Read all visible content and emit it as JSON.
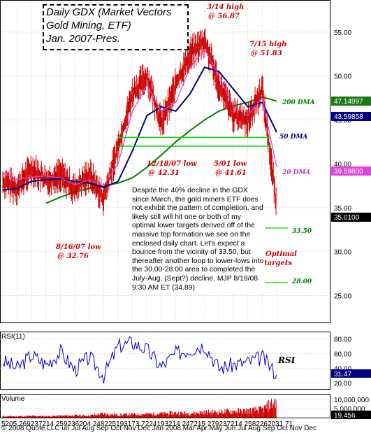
{
  "title_lines": [
    "Daily GDX (Market Vectors",
    "Gold Mining, ETF)",
    "Jan. 2007-Pres."
  ],
  "commentary": "Despite the 40% decline in the GDX since March, the gold miners ETF does not exhibit the pattern of completion, and likely still will hit one or both of my optimal lower targets derived off of the massive top formation we see on the enclosed daily chart. Let's expect a bounce from the vicinity of 33.50, but thereafter another loop to lower-lows into the 30.00-28.00 area to completed the July-Aug. (Sept?) decline. MJP 8/19/08 9:30 AM ET (34.89)",
  "annotations": {
    "high_0314": "3/14 high",
    "high_0314_val": "@ 56.87",
    "high_0715": "7/15 high",
    "high_0715_val": "@ 51.83",
    "low_1218": "12/18/07 low",
    "low_1218_val": "@ 42.31",
    "low_0501": "5/01 low",
    "low_0501_val": "@ 41.61",
    "low_0816": "8/16/07 low",
    "low_0816_val": "@ 32.76",
    "dma200": "200 DMA",
    "dma50": "50 DMA",
    "dma20": "20 DMA",
    "target1": "33.50",
    "target2": "28.00",
    "optimal_targets_1": "Optimal",
    "optimal_targets_2": "targets",
    "rsi_label": "RSI"
  },
  "price_tags": {
    "dma200_value": "47.14997",
    "dma50_value": "43.59858",
    "dma20_value": "39.59800",
    "last_price": "35.0100",
    "rsi_value": "31.47",
    "volume_value": "19,456"
  },
  "panel_labels": {
    "rsi": "RSI(11)",
    "volume": "Volume"
  },
  "x_axis": {
    "day_ticks": "5205  269237214   259236204  248225193173 7224193214  247215   279237214  2582262031 71",
    "month_ticks": "© 2008 Quote LLC un Jul   Aug Sep Oct  Nov Dec Jan 2008 Mar  Apr  May Jun  Jul    Aug Sep Oct  Nov Dec"
  },
  "colors": {
    "candle": "#cc0000",
    "dma20": "#dd44dd",
    "dma50": "#000080",
    "dma200": "#008000",
    "support": "#00dd00",
    "rsi": "#0000cc"
  },
  "chart_data": [
    {
      "type": "line",
      "title": "Daily GDX (Market Vectors Gold Mining, ETF) Jan. 2007-Pres.",
      "y_ticks": [
        25,
        30,
        35,
        40,
        45,
        50,
        55
      ],
      "ylim": [
        22,
        58.5
      ],
      "x_dates": [
        "2007-01",
        "2007-02",
        "2007-03",
        "2007-04",
        "2007-05",
        "2007-06",
        "2007-07",
        "2007-08",
        "2007-09",
        "2007-10",
        "2007-11",
        "2007-12",
        "2008-01",
        "2008-02",
        "2008-03",
        "2008-04",
        "2008-05",
        "2008-06",
        "2008-07",
        "2008-08"
      ],
      "series": [
        {
          "name": "GDX",
          "values": [
            38.0,
            37.2,
            39.5,
            38.0,
            38.8,
            37.0,
            38.8,
            36.0,
            42.0,
            48.0,
            50.0,
            44.5,
            49.0,
            52.5,
            54.0,
            49.0,
            45.5,
            45.0,
            48.5,
            35.0
          ]
        },
        {
          "name": "20 DMA",
          "values": [
            39.0,
            38.2,
            38.5,
            38.6,
            38.4,
            37.6,
            38.2,
            37.5,
            40.0,
            46.0,
            49.0,
            46.0,
            47.0,
            51.0,
            53.0,
            50.0,
            46.5,
            45.5,
            47.5,
            39.6
          ]
        },
        {
          "name": "50 DMA",
          "values": [
            37.0,
            37.2,
            38.0,
            38.2,
            38.3,
            38.0,
            37.8,
            37.3,
            38.0,
            41.5,
            45.5,
            46.5,
            46.0,
            48.0,
            51.0,
            50.5,
            48.5,
            46.5,
            47.0,
            43.6
          ]
        },
        {
          "name": "200 DMA",
          "values": [
            null,
            null,
            null,
            35.5,
            36.2,
            36.8,
            37.2,
            37.5,
            37.8,
            38.4,
            39.6,
            41.0,
            42.5,
            43.8,
            45.0,
            46.0,
            46.6,
            47.0,
            47.6,
            47.15
          ]
        }
      ],
      "annotations": [
        {
          "label": "3/14 high @ 56.87",
          "date": "2008-03-14",
          "value": 56.87
        },
        {
          "label": "7/15 high @ 51.83",
          "date": "2008-07-15",
          "value": 51.83
        },
        {
          "label": "12/18/07 low @ 42.31",
          "date": "2007-12-18",
          "value": 42.31
        },
        {
          "label": "5/01 low @ 41.61",
          "date": "2008-05-01",
          "value": 41.61
        },
        {
          "label": "8/16/07 low @ 32.76",
          "date": "2007-08-16",
          "value": 32.76
        }
      ],
      "support_levels": [
        43.0,
        42.0
      ],
      "targets": [
        33.5,
        28.0
      ]
    },
    {
      "type": "line",
      "title": "RSI(11)",
      "y_ticks": [
        20,
        40,
        60,
        80
      ],
      "ylim": [
        12,
        88
      ],
      "series": [
        {
          "name": "RSI",
          "values": [
            50,
            40,
            58,
            45,
            62,
            38,
            55,
            30,
            70,
            75,
            65,
            42,
            60,
            66,
            72,
            40,
            45,
            48,
            55,
            31.47
          ]
        }
      ],
      "last": 31.47
    },
    {
      "type": "bar",
      "title": "Volume",
      "y_ticks": [
        "10,000,000",
        "5,000,000"
      ],
      "ylim": [
        0,
        12000000
      ],
      "series": [
        {
          "name": "Volume",
          "values": [
            800000,
            700000,
            900000,
            800000,
            1000000,
            1200000,
            1100000,
            2200000,
            1500000,
            1800000,
            2000000,
            2200000,
            2600000,
            2400000,
            3000000,
            3200000,
            3500000,
            3800000,
            4500000,
            9500000
          ]
        }
      ],
      "last": 19456
    }
  ]
}
